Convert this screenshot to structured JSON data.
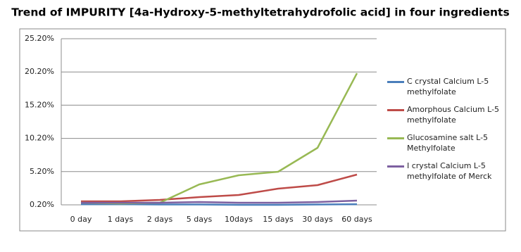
{
  "chart_data": {
    "type": "line",
    "title": "Trend of IMPURITY [4a-Hydroxy-5-methyltetrahydrofolic acid] in four ingredients",
    "categories": [
      "0 day",
      "1 days",
      "2 days",
      "5 days",
      "10days",
      "15 days",
      "30 days",
      "60 days"
    ],
    "series": [
      {
        "name": "C crystal Calcium L-5 methylfolate",
        "color": "#4a7ebb",
        "values": [
          0.3,
          0.3,
          0.25,
          0.25,
          0.2,
          0.2,
          0.25,
          0.3
        ]
      },
      {
        "name": "Amorphous Calcium L-5 methylfolate",
        "color": "#be4b48",
        "values": [
          0.73,
          0.73,
          0.94,
          1.37,
          1.68,
          2.64,
          3.17,
          4.76
        ]
      },
      {
        "name": "Glucosamine salt L-5 Methylfolate",
        "color": "#98b954",
        "values": [
          0.52,
          0.41,
          0.52,
          3.27,
          4.65,
          5.18,
          8.78,
          20.0
        ]
      },
      {
        "name": "I crystal Calcium L-5 methylfolate of Merck",
        "color": "#7d60a0",
        "values": [
          0.52,
          0.52,
          0.52,
          0.62,
          0.52,
          0.52,
          0.62,
          0.84
        ]
      }
    ],
    "ylim": [
      0.2,
      25.2
    ],
    "yticks": [
      {
        "value": 0.2,
        "label": "0.20%"
      },
      {
        "value": 5.2,
        "label": "5.20%"
      },
      {
        "value": 10.2,
        "label": "10.20%"
      },
      {
        "value": 15.2,
        "label": "15.20%"
      },
      {
        "value": 20.2,
        "label": "20.20%"
      },
      {
        "value": 25.2,
        "label": "25.20%"
      }
    ],
    "grid": true,
    "legend": "right"
  }
}
